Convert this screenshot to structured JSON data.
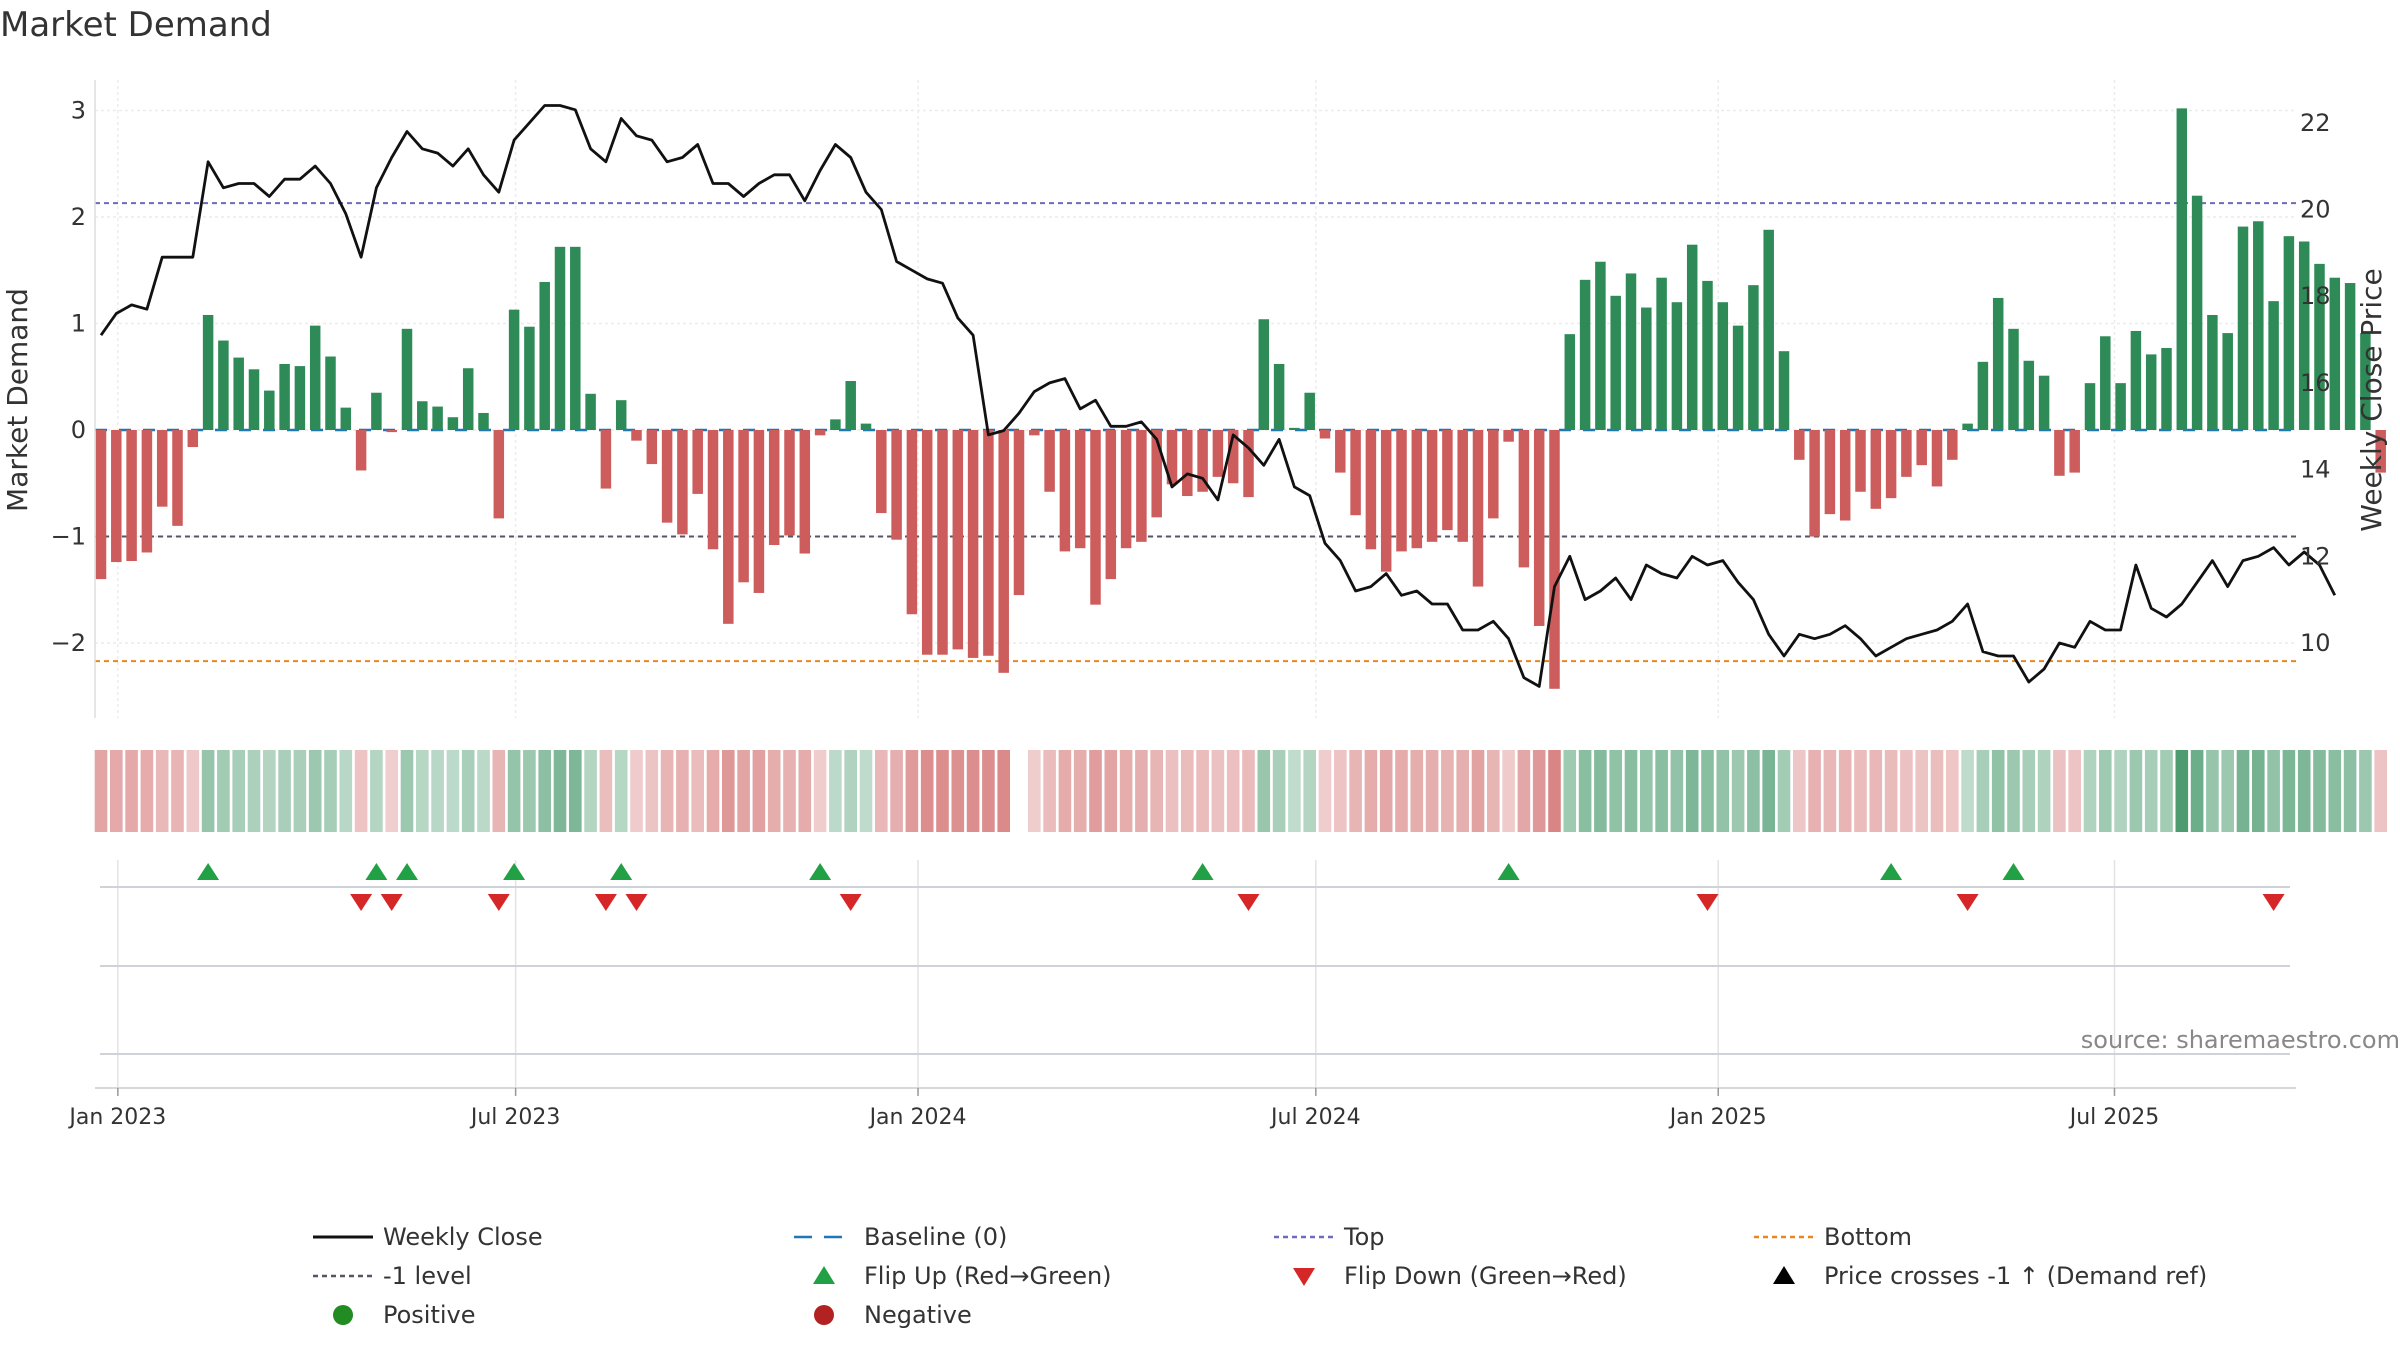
{
  "chart_data": {
    "type": "bar+line",
    "title": "Market Demand",
    "ylabel_left": "Market Demand",
    "ylabel_right": "Weekly Close Price",
    "source": "source: sharemaestro.com",
    "ylim_left": [
      -2.7,
      3.1
    ],
    "ylim_right": [
      8.8,
      22.6
    ],
    "left_ticks": [
      {
        "v": 3,
        "label": "3"
      },
      {
        "v": 2,
        "label": "2"
      },
      {
        "v": 1,
        "label": "1"
      },
      {
        "v": 0,
        "label": "0"
      },
      {
        "v": -1,
        "label": "−1"
      },
      {
        "v": -2,
        "label": "−2"
      }
    ],
    "right_ticks": [
      {
        "v": 22,
        "label": "22"
      },
      {
        "v": 20,
        "label": "20"
      },
      {
        "v": 18,
        "label": "18"
      },
      {
        "v": 16,
        "label": "16"
      },
      {
        "v": 14,
        "label": "14"
      },
      {
        "v": 12,
        "label": "12"
      },
      {
        "v": 10,
        "label": "10"
      }
    ],
    "x_ticks": [
      {
        "label": "Jan 2023",
        "week": 1.1
      },
      {
        "label": "Jul 2023",
        "week": 27.1
      },
      {
        "label": "Jan 2024",
        "week": 53.4
      },
      {
        "label": "Jul 2024",
        "week": 79.4
      },
      {
        "label": "Jan 2025",
        "week": 105.7
      },
      {
        "label": "Jul 2025",
        "week": 131.6
      }
    ],
    "reference_lines": {
      "baseline": 0,
      "top": 2.13,
      "minus1": -1.0,
      "bottom": -2.17
    },
    "demand": [
      -1.4,
      -1.24,
      -1.23,
      -1.15,
      -0.72,
      -0.9,
      -0.16,
      1.08,
      0.84,
      0.68,
      0.57,
      0.37,
      0.62,
      0.6,
      0.98,
      0.69,
      0.21,
      -0.38,
      0.35,
      -0.02,
      0.95,
      0.27,
      0.22,
      0.12,
      0.58,
      0.16,
      -0.83,
      1.13,
      0.97,
      1.39,
      1.72,
      1.72,
      0.34,
      -0.55,
      0.28,
      -0.1,
      -0.32,
      -0.87,
      -0.98,
      -0.6,
      -1.12,
      -1.82,
      -1.43,
      -1.53,
      -1.08,
      -0.99,
      -1.16,
      -0.05,
      0.1,
      0.46,
      0.06,
      -0.78,
      -1.03,
      -1.73,
      -2.11,
      -2.11,
      -2.06,
      -2.14,
      -2.12,
      -2.28,
      -1.55,
      -0.05,
      -0.58,
      -1.14,
      -1.11,
      -1.64,
      -1.4,
      -1.11,
      -1.05,
      -0.82,
      -0.51,
      -0.62,
      -0.58,
      -0.44,
      -0.5,
      -0.63,
      1.04,
      0.62,
      0.02,
      0.35,
      -0.08,
      -0.4,
      -0.8,
      -1.12,
      -1.33,
      -1.14,
      -1.11,
      -1.05,
      -0.94,
      -1.05,
      -1.47,
      -0.83,
      -0.11,
      -1.29,
      -1.84,
      -2.43,
      0.9,
      1.41,
      1.58,
      1.26,
      1.47,
      1.15,
      1.43,
      1.2,
      1.74,
      1.4,
      1.2,
      0.98,
      1.36,
      1.88,
      0.74,
      -0.28,
      -1.0,
      -0.79,
      -0.85,
      -0.58,
      -0.74,
      -0.64,
      -0.44,
      -0.33,
      -0.53,
      -0.28,
      0.06,
      0.64,
      1.24,
      0.95,
      0.65,
      0.51,
      -0.43,
      -0.4,
      0.44,
      0.88,
      0.44,
      0.93,
      0.71,
      0.77,
      3.02,
      2.2,
      1.08,
      0.91,
      1.91,
      1.96,
      1.21,
      1.82,
      1.77,
      1.56,
      1.43,
      1.38,
      0.91,
      -0.4
    ],
    "close": [
      17.1,
      17.6,
      17.8,
      17.7,
      18.9,
      18.9,
      18.9,
      21.1,
      20.5,
      20.6,
      20.6,
      20.3,
      20.7,
      20.7,
      21.0,
      20.6,
      19.9,
      18.9,
      20.5,
      21.2,
      21.8,
      21.4,
      21.3,
      21.0,
      21.4,
      20.8,
      20.4,
      21.6,
      22.0,
      22.4,
      22.4,
      22.3,
      21.4,
      21.1,
      22.1,
      21.7,
      21.6,
      21.1,
      21.2,
      21.5,
      20.6,
      20.6,
      20.3,
      20.6,
      20.8,
      20.8,
      20.2,
      20.9,
      21.5,
      21.2,
      20.4,
      20.0,
      18.8,
      18.6,
      18.4,
      18.3,
      17.5,
      17.1,
      14.8,
      14.9,
      15.3,
      15.8,
      16.0,
      16.1,
      15.4,
      15.6,
      15.0,
      15.0,
      15.1,
      14.7,
      13.6,
      13.9,
      13.8,
      13.3,
      14.8,
      14.5,
      14.1,
      14.7,
      13.6,
      13.4,
      12.3,
      11.9,
      11.2,
      11.3,
      11.6,
      11.1,
      11.2,
      10.9,
      10.9,
      10.3,
      10.3,
      10.5,
      10.1,
      9.2,
      9.0,
      11.3,
      12.0,
      11.0,
      11.2,
      11.5,
      11.0,
      11.8,
      11.6,
      11.5,
      12.0,
      11.8,
      11.9,
      11.4,
      11.0,
      10.2,
      9.7,
      10.2,
      10.1,
      10.2,
      10.4,
      10.1,
      9.7,
      9.9,
      10.1,
      10.2,
      10.3,
      10.5,
      10.9,
      9.8,
      9.7,
      9.7,
      9.1,
      9.4,
      10.0,
      9.9,
      10.5,
      10.3,
      10.3,
      11.8,
      10.8,
      10.6,
      10.9,
      11.4,
      11.9,
      11.3,
      11.9,
      12.0,
      12.2,
      11.8,
      12.1,
      11.8,
      11.1
    ],
    "heat_gap_after_week": 59,
    "flip_up_weeks": [
      7,
      18,
      20,
      27,
      34,
      47,
      72,
      92,
      117,
      125
    ],
    "flip_down_weeks": [
      17,
      19,
      26,
      33,
      35,
      49,
      75,
      105,
      122,
      142
    ],
    "legend": [
      {
        "key": "weekly-close",
        "label": "Weekly Close",
        "symbol": "line",
        "color": "#111111"
      },
      {
        "key": "baseline",
        "label": "Baseline (0)",
        "symbol": "dash",
        "color": "#1f77b4"
      },
      {
        "key": "top",
        "label": "Top",
        "symbol": "dot",
        "color": "#6b6bbf"
      },
      {
        "key": "bottom",
        "label": "Bottom",
        "symbol": "dot",
        "color": "#e8871e"
      },
      {
        "key": "minus1",
        "label": "-1 level",
        "symbol": "dot",
        "color": "#555566"
      },
      {
        "key": "flip-up",
        "label": "Flip Up (Red→Green)",
        "symbol": "tri-up",
        "color": "#22a046"
      },
      {
        "key": "flip-down",
        "label": "Flip Down (Green→Red)",
        "symbol": "tri-down",
        "color": "#d62728"
      },
      {
        "key": "price-cross",
        "label": "Price crosses -1 ↑ (Demand ref)",
        "symbol": "tri-up",
        "color": "#000000"
      },
      {
        "key": "positive",
        "label": "Positive",
        "symbol": "circle",
        "color": "#228b22"
      },
      {
        "key": "negative",
        "label": "Negative",
        "symbol": "circle",
        "color": "#b22222"
      }
    ],
    "colors": {
      "positive_bar": "#2e8b57",
      "negative_bar": "#cd5c5c",
      "price_line": "#111111",
      "grid": "#e6e6e6"
    }
  }
}
